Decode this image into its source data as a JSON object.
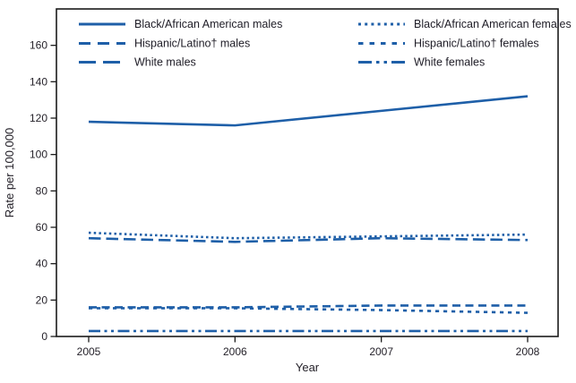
{
  "figure": {
    "background": "#ffffff",
    "plot_border_color": "#1a1a1a",
    "text_color": "#25222a"
  },
  "chart_data": {
    "type": "line",
    "title": "",
    "xlabel": "Year",
    "ylabel": "Rate per 100,000",
    "x": [
      2005,
      2006,
      2007,
      2008
    ],
    "x_tick_labels": [
      "2005",
      "2006",
      "2007",
      "2008"
    ],
    "y_ticks": [
      0,
      20,
      40,
      60,
      80,
      100,
      120,
      140,
      160
    ],
    "ylim": [
      0,
      180
    ],
    "grid": false,
    "legend_position": "inside-top, two columns",
    "line_color": "#1e5fa8",
    "series": [
      {
        "name": "Black/African American males",
        "dash": "solid",
        "values": [
          118,
          116,
          124,
          132
        ],
        "legend_col": 0,
        "legend_row": 0
      },
      {
        "name": "Hispanic/Latino† males",
        "dash": "medium-dash",
        "values": [
          16,
          16,
          17,
          17
        ],
        "legend_col": 0,
        "legend_row": 1
      },
      {
        "name": "White males",
        "dash": "long-dash",
        "values": [
          54,
          52,
          54,
          53
        ],
        "legend_col": 0,
        "legend_row": 2
      },
      {
        "name": "Black/African American females",
        "dash": "dotted",
        "values": [
          57,
          54,
          55,
          56
        ],
        "legend_col": 1,
        "legend_row": 0
      },
      {
        "name": "Hispanic/Latino† females",
        "dash": "square-dot",
        "values": [
          15.5,
          15.5,
          14.5,
          13
        ],
        "legend_col": 1,
        "legend_row": 1
      },
      {
        "name": "White females",
        "dash": "dash-dot-dot",
        "values": [
          3,
          3,
          3,
          3
        ],
        "legend_col": 1,
        "legend_row": 2
      }
    ]
  }
}
